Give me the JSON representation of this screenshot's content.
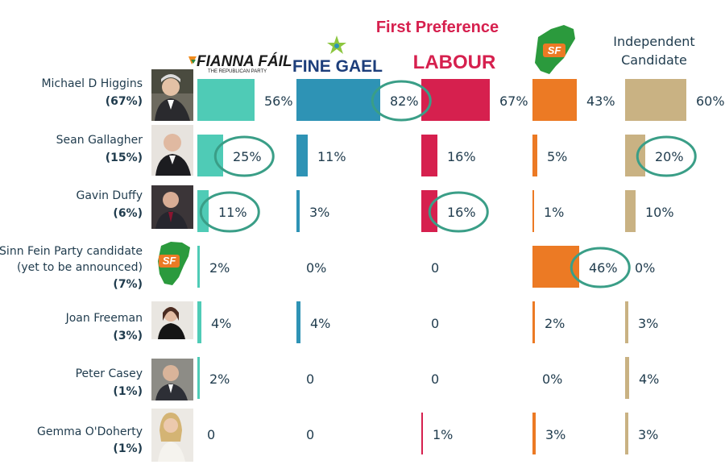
{
  "chart_data": {
    "type": "bar",
    "title": "First Preference",
    "parties": [
      {
        "name": "FIANNA FÁIL",
        "sub": "THE REPUBLICAN PARTY",
        "color": "#4fcbb6",
        "icon": "fianna-fail-logo"
      },
      {
        "name": "FINE GAEL",
        "color": "#2e93b5",
        "icon": "fine-gael-logo"
      },
      {
        "name": "LABOUR",
        "color": "#d6204e",
        "icon": "labour-logo"
      },
      {
        "name": "SF",
        "color": "#ec7a24",
        "icon": "sinn-fein-logo"
      },
      {
        "name": "Independent Candidate",
        "name_lines": [
          "Independent",
          "Candidate"
        ],
        "color": "#c9b283",
        "icon": ""
      }
    ],
    "candidates": [
      {
        "name": "Michael D Higgins",
        "share": "(67%)",
        "photo": "photo-higgins",
        "values": [
          56,
          82,
          67,
          43,
          60
        ],
        "labels": [
          "56%",
          "82%",
          "67%",
          "43%",
          "60%"
        ]
      },
      {
        "name": "Sean Gallagher",
        "share": "(15%)",
        "photo": "photo-gallagher",
        "values": [
          25,
          11,
          16,
          5,
          20
        ],
        "labels": [
          "25%",
          "11%",
          "16%",
          "5%",
          "20%"
        ]
      },
      {
        "name": "Gavin Duffy",
        "share": "(6%)",
        "photo": "photo-duffy",
        "values": [
          11,
          3,
          16,
          1,
          10
        ],
        "labels": [
          "11%",
          "3%",
          "16%",
          "1%",
          "10%"
        ]
      },
      {
        "name": "Sinn Fein Party candidate",
        "name2": "(yet to be announced)",
        "share": "(7%)",
        "photo": "sinn-fein-logo",
        "values": [
          2,
          0,
          0,
          46,
          0
        ],
        "labels": [
          "2%",
          "0%",
          "0",
          "46%",
          "0%"
        ]
      },
      {
        "name": "Joan Freeman",
        "share": "(3%)",
        "photo": "photo-freeman",
        "values": [
          4,
          4,
          0,
          2,
          3
        ],
        "labels": [
          "4%",
          "4%",
          "0",
          "2%",
          "3%"
        ]
      },
      {
        "name": "Peter Casey",
        "share": "(1%)",
        "photo": "photo-casey",
        "values": [
          2,
          0,
          0,
          0,
          4
        ],
        "labels": [
          "2%",
          "0",
          "0",
          "0%",
          "4%"
        ]
      },
      {
        "name": "Gemma O'Doherty",
        "share": "(1%)",
        "photo": "photo-odoherty",
        "values": [
          0,
          0,
          1,
          3,
          3
        ],
        "labels": [
          "0",
          "0",
          "1%",
          "3%",
          "3%"
        ]
      }
    ],
    "highlights": [
      {
        "candidate": 0,
        "party": 1
      },
      {
        "candidate": 1,
        "party": 0
      },
      {
        "candidate": 1,
        "party": 4
      },
      {
        "candidate": 2,
        "party": 0
      },
      {
        "candidate": 2,
        "party": 2
      },
      {
        "candidate": 3,
        "party": 3
      }
    ],
    "highlight_color": "#3a9e87",
    "ylim": [
      0,
      100
    ]
  }
}
